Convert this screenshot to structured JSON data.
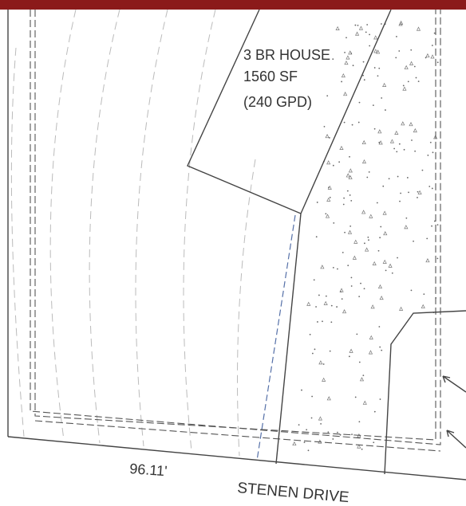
{
  "house": {
    "lines": [
      "3 BR HOUSE",
      "1560 SF",
      "(240 GPD)"
    ]
  },
  "dimension": "96.11'",
  "street": "STENEN DRIVE"
}
